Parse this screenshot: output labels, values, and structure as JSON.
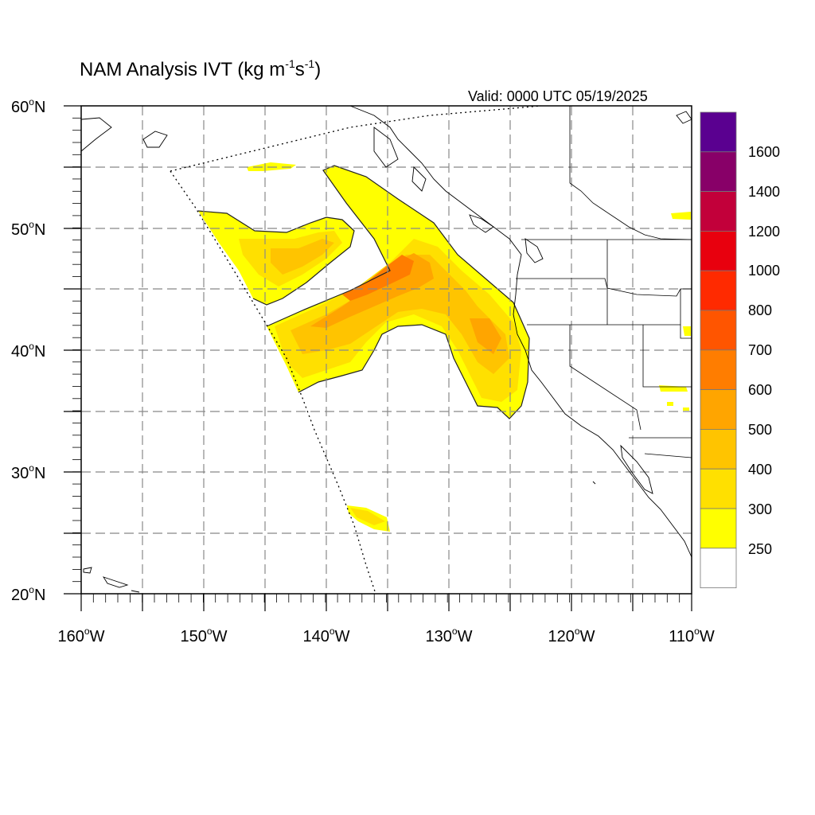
{
  "title": {
    "prefix": "NAM Analysis IVT (kg m",
    "exp1": "-1",
    "mid": "s",
    "exp2": "-1",
    "suffix": ")"
  },
  "valid_text": "Valid: 0000 UTC 05/19/2025",
  "lat_labels": [
    {
      "num": "60",
      "deg": "o",
      "hem": "N"
    },
    {
      "num": "50",
      "deg": "o",
      "hem": "N"
    },
    {
      "num": "40",
      "deg": "o",
      "hem": "N"
    },
    {
      "num": "30",
      "deg": "o",
      "hem": "N"
    },
    {
      "num": "20",
      "deg": "o",
      "hem": "N"
    }
  ],
  "lon_labels": [
    {
      "num": "160",
      "deg": "o",
      "hem": "W"
    },
    {
      "num": "150",
      "deg": "o",
      "hem": "W"
    },
    {
      "num": "140",
      "deg": "o",
      "hem": "W"
    },
    {
      "num": "130",
      "deg": "o",
      "hem": "W"
    },
    {
      "num": "120",
      "deg": "o",
      "hem": "W"
    },
    {
      "num": "110",
      "deg": "o",
      "hem": "W"
    }
  ],
  "colorbar": {
    "labels": [
      "1600",
      "1400",
      "1200",
      "1000",
      "800",
      "700",
      "600",
      "500",
      "400",
      "300",
      "250"
    ],
    "colors_top_to_bottom": [
      "#5a0090",
      "#880068",
      "#c2003a",
      "#e8000e",
      "#ff2a00",
      "#ff5500",
      "#ff7d00",
      "#ffa500",
      "#ffc400",
      "#ffe000",
      "#ffff00",
      "#ffffff"
    ]
  },
  "map": {
    "lon_range": [
      -160,
      -110
    ],
    "lat_range": [
      20,
      60
    ],
    "ivt_colors": {
      "c250": "#ffff00",
      "c300": "#ffe000",
      "c400": "#ffc400",
      "c500": "#ffa500",
      "c600": "#ff7d00"
    }
  }
}
